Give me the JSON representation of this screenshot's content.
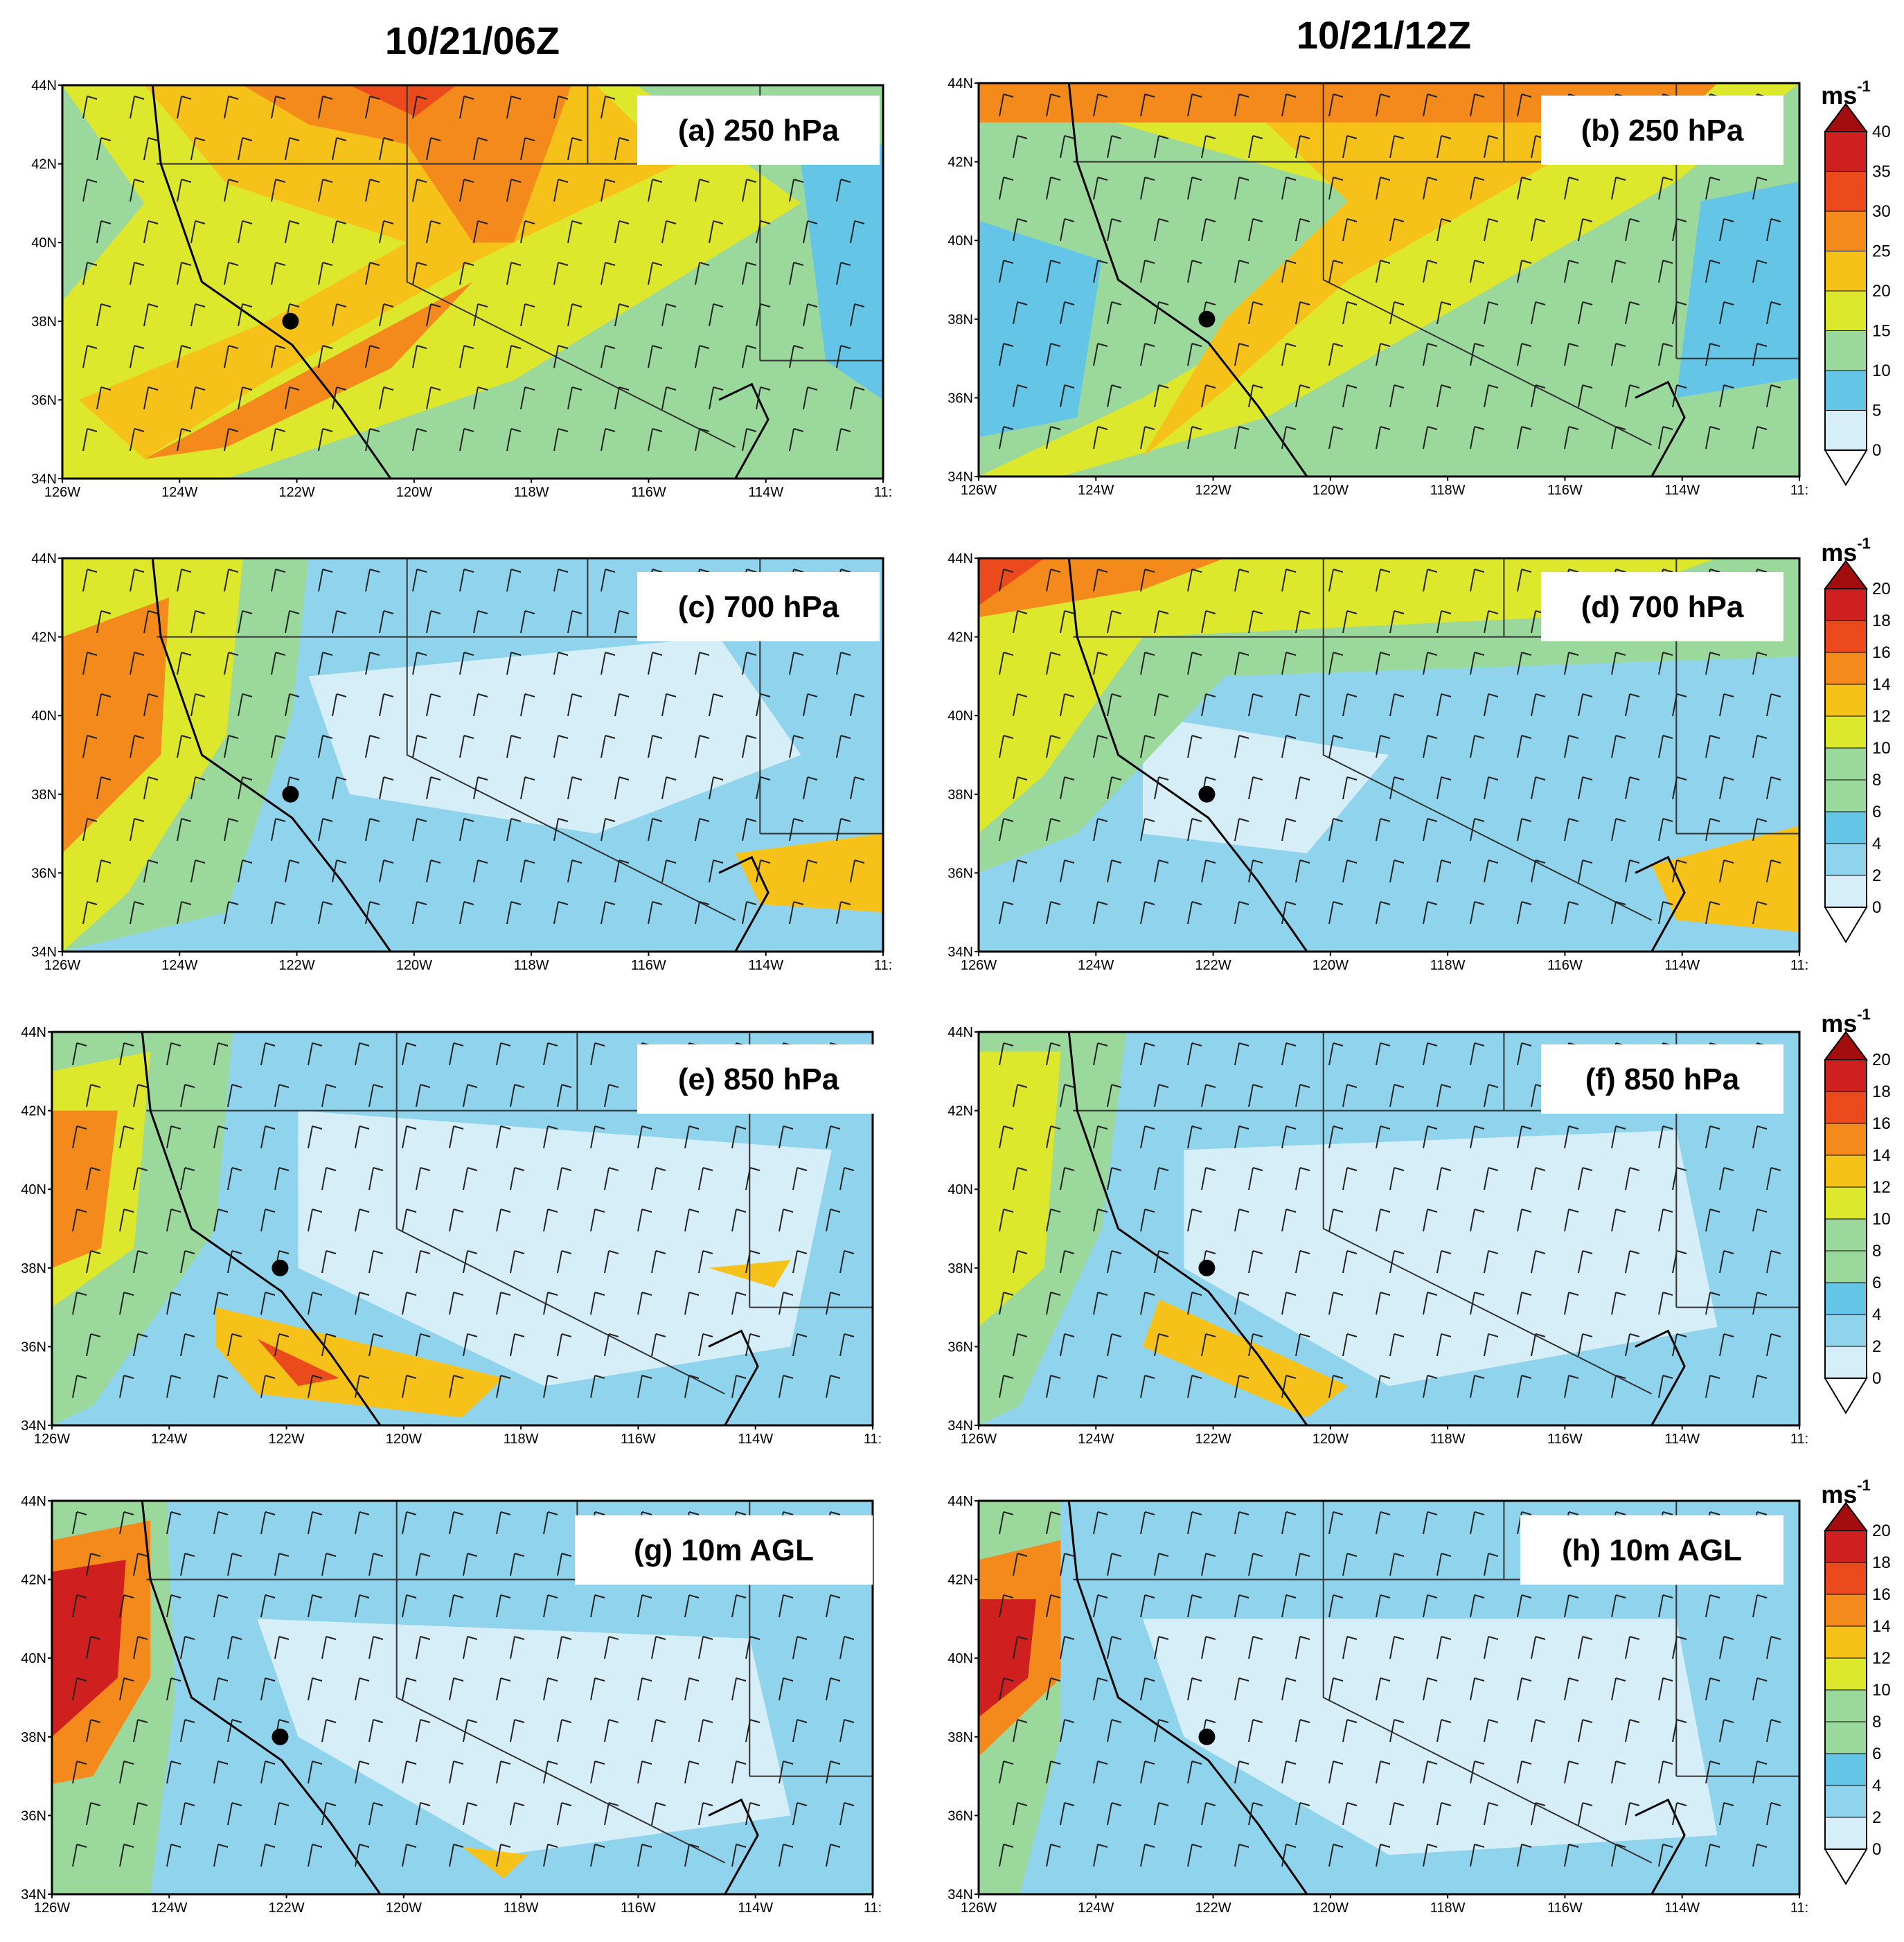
{
  "figure": {
    "columns": [
      {
        "title": "10/21/06Z"
      },
      {
        "title": "10/21/12Z"
      }
    ],
    "lat_labels": [
      "44N",
      "42N",
      "40N",
      "38N",
      "36N",
      "34N"
    ],
    "lon_labels": [
      "126W",
      "124W",
      "122W",
      "120W",
      "118W",
      "116W",
      "114W",
      "11:"
    ],
    "panels": [
      {
        "id": "a",
        "label": "(a) 250 hPa",
        "level": "250hPa",
        "time": "06Z"
      },
      {
        "id": "b",
        "label": "(b) 250 hPa",
        "level": "250hPa",
        "time": "12Z"
      },
      {
        "id": "c",
        "label": "(c) 700 hPa",
        "level": "700hPa",
        "time": "06Z"
      },
      {
        "id": "d",
        "label": "(d) 700 hPa",
        "level": "700hPa",
        "time": "12Z"
      },
      {
        "id": "e",
        "label": "(e) 850 hPa",
        "level": "850hPa",
        "time": "06Z"
      },
      {
        "id": "f",
        "label": "(f) 850 hPa",
        "level": "850hPa",
        "time": "12Z"
      },
      {
        "id": "g",
        "label": "(g) 10m AGL",
        "level": "10m",
        "time": "06Z"
      },
      {
        "id": "h",
        "label": "(h) 10m AGL",
        "level": "10m",
        "time": "12Z"
      }
    ],
    "colorbars": [
      {
        "unit": "ms",
        "unit_sup": "-1",
        "ticks": [
          "40",
          "35",
          "30",
          "25",
          "20",
          "15",
          "10",
          "5",
          "0"
        ]
      },
      {
        "unit": "ms",
        "unit_sup": "-1",
        "ticks": [
          "20",
          "18",
          "16",
          "14",
          "12",
          "10",
          "8",
          "6",
          "4",
          "2",
          "0"
        ]
      },
      {
        "unit": "ms",
        "unit_sup": "-1",
        "ticks": [
          "20",
          "18",
          "16",
          "14",
          "12",
          "10",
          "8",
          "6",
          "4",
          "2",
          "0"
        ]
      },
      {
        "unit": "ms",
        "unit_sup": "-1",
        "ticks": [
          "20",
          "18",
          "16",
          "14",
          "12",
          "10",
          "8",
          "6",
          "4",
          "2",
          "0"
        ]
      }
    ],
    "colors": {
      "c0": "#d6eef8",
      "c1": "#8fd4ec",
      "c2": "#65c5e6",
      "c3": "#9bd89b",
      "c4": "#dde82d",
      "c5": "#f6c21a",
      "c6": "#f58a1c",
      "c7": "#ea4a1c",
      "c8": "#cf1f1f",
      "c9": "#a30d0d"
    }
  }
}
